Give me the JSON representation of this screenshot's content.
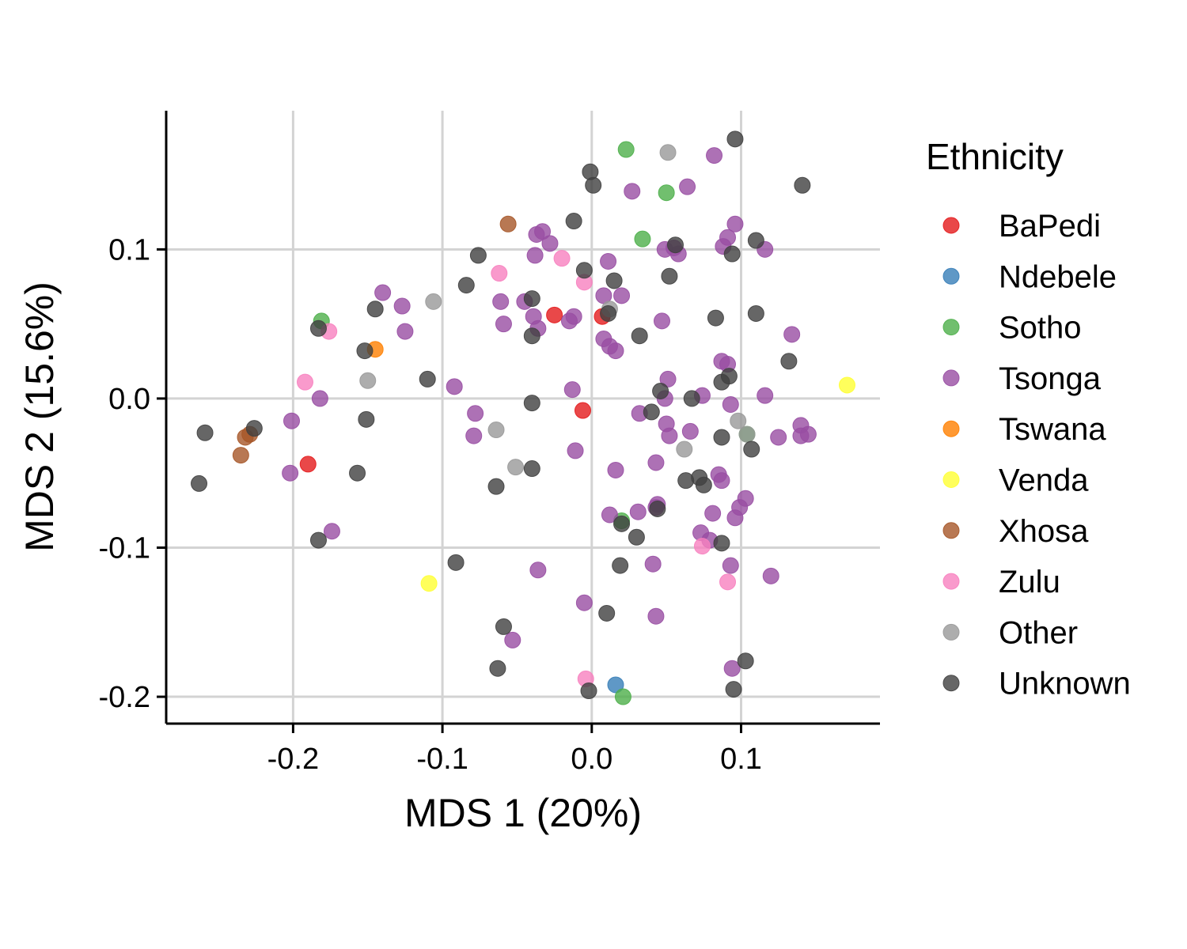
{
  "chart_data": {
    "type": "scatter",
    "xlabel": "MDS 1 (20%)",
    "ylabel": "MDS 2 (15.6%)",
    "xlim": [
      -0.285,
      0.193
    ],
    "ylim": [
      -0.218,
      0.193
    ],
    "x_ticks": [
      -0.2,
      -0.1,
      0.0,
      0.1
    ],
    "x_tick_labels": [
      "-0.2",
      "-0.1",
      "0.0",
      "0.1"
    ],
    "y_ticks": [
      -0.2,
      -0.1,
      0.0,
      0.1
    ],
    "y_tick_labels": [
      "-0.2",
      "-0.1",
      "0.0",
      "0.1"
    ],
    "grid": true,
    "legend": {
      "title": "Ethnicity",
      "position": "right"
    },
    "series": [
      {
        "name": "BaPedi",
        "color": "#e41a1c",
        "points": [
          [
            -0.19,
            -0.044
          ],
          [
            -0.025,
            0.056
          ],
          [
            0.007,
            0.055
          ],
          [
            -0.006,
            -0.008
          ]
        ]
      },
      {
        "name": "Ndebele",
        "color": "#377eb8",
        "points": [
          [
            0.016,
            -0.192
          ]
        ]
      },
      {
        "name": "Sotho",
        "color": "#4daf4a",
        "points": [
          [
            -0.181,
            0.052
          ],
          [
            0.023,
            0.167
          ],
          [
            0.05,
            0.138
          ],
          [
            0.034,
            0.107
          ],
          [
            0.02,
            -0.082
          ],
          [
            0.104,
            -0.024
          ],
          [
            0.021,
            -0.2
          ]
        ]
      },
      {
        "name": "Tsonga",
        "color": "#984ea3",
        "points": [
          [
            -0.14,
            0.071
          ],
          [
            -0.127,
            0.062
          ],
          [
            -0.125,
            0.045
          ],
          [
            -0.182,
            0.0
          ],
          [
            -0.201,
            -0.015
          ],
          [
            -0.202,
            -0.05
          ],
          [
            -0.174,
            -0.089
          ],
          [
            -0.092,
            0.008
          ],
          [
            -0.078,
            -0.01
          ],
          [
            -0.079,
            -0.025
          ],
          [
            -0.061,
            0.065
          ],
          [
            -0.059,
            0.05
          ],
          [
            -0.037,
            0.11
          ],
          [
            -0.033,
            0.112
          ],
          [
            -0.038,
            0.096
          ],
          [
            -0.028,
            0.104
          ],
          [
            -0.039,
            0.055
          ],
          [
            -0.036,
            0.047
          ],
          [
            -0.045,
            0.065
          ],
          [
            -0.015,
            0.052
          ],
          [
            -0.012,
            0.055
          ],
          [
            -0.013,
            0.006
          ],
          [
            -0.011,
            -0.035
          ],
          [
            0.011,
            0.092
          ],
          [
            0.008,
            0.069
          ],
          [
            0.02,
            0.069
          ],
          [
            0.008,
            0.04
          ],
          [
            0.012,
            0.035
          ],
          [
            0.016,
            0.032
          ],
          [
            0.027,
            0.139
          ],
          [
            0.064,
            0.142
          ],
          [
            0.082,
            0.163
          ],
          [
            0.049,
            0.1
          ],
          [
            0.055,
            0.101
          ],
          [
            0.058,
            0.097
          ],
          [
            0.051,
            0.013
          ],
          [
            0.049,
            0.0
          ],
          [
            0.047,
            0.052
          ],
          [
            0.032,
            -0.01
          ],
          [
            0.05,
            -0.017
          ],
          [
            0.052,
            -0.025
          ],
          [
            0.066,
            -0.022
          ],
          [
            0.074,
            0.002
          ],
          [
            0.043,
            -0.043
          ],
          [
            0.016,
            -0.048
          ],
          [
            0.044,
            -0.071
          ],
          [
            0.043,
            -0.073
          ],
          [
            0.031,
            -0.076
          ],
          [
            0.012,
            -0.078
          ],
          [
            0.096,
            0.117
          ],
          [
            0.091,
            0.108
          ],
          [
            0.088,
            0.102
          ],
          [
            0.116,
            0.1
          ],
          [
            0.087,
            0.025
          ],
          [
            0.091,
            0.023
          ],
          [
            0.093,
            -0.004
          ],
          [
            0.116,
            0.002
          ],
          [
            0.134,
            0.043
          ],
          [
            0.125,
            -0.026
          ],
          [
            0.14,
            -0.018
          ],
          [
            0.14,
            -0.025
          ],
          [
            0.145,
            -0.024
          ],
          [
            0.085,
            -0.051
          ],
          [
            0.087,
            -0.055
          ],
          [
            0.103,
            -0.067
          ],
          [
            0.099,
            -0.073
          ],
          [
            0.096,
            -0.08
          ],
          [
            0.081,
            -0.077
          ],
          [
            0.073,
            -0.09
          ],
          [
            0.079,
            -0.095
          ],
          [
            0.093,
            -0.112
          ],
          [
            0.12,
            -0.119
          ],
          [
            0.041,
            -0.111
          ],
          [
            0.043,
            -0.146
          ],
          [
            -0.036,
            -0.115
          ],
          [
            -0.005,
            -0.137
          ],
          [
            -0.053,
            -0.162
          ],
          [
            0.094,
            -0.181
          ]
        ]
      },
      {
        "name": "Tswana",
        "color": "#ff7f00",
        "points": [
          [
            -0.145,
            0.033
          ]
        ]
      },
      {
        "name": "Venda",
        "color": "#ffff33",
        "points": [
          [
            0.171,
            0.009
          ],
          [
            -0.109,
            -0.124
          ]
        ]
      },
      {
        "name": "Xhosa",
        "color": "#a65628",
        "points": [
          [
            -0.056,
            0.117
          ],
          [
            -0.232,
            -0.026
          ],
          [
            -0.235,
            -0.038
          ],
          [
            -0.229,
            -0.024
          ]
        ]
      },
      {
        "name": "Zulu",
        "color": "#f781bf",
        "points": [
          [
            -0.02,
            0.094
          ],
          [
            -0.062,
            0.084
          ],
          [
            -0.005,
            0.078
          ],
          [
            -0.176,
            0.045
          ],
          [
            -0.192,
            0.011
          ],
          [
            0.074,
            -0.099
          ],
          [
            0.091,
            -0.123
          ],
          [
            -0.004,
            -0.188
          ]
        ]
      },
      {
        "name": "Other",
        "color": "#999999",
        "points": [
          [
            0.051,
            0.165
          ],
          [
            -0.106,
            0.065
          ],
          [
            -0.15,
            0.012
          ],
          [
            -0.064,
            -0.021
          ],
          [
            -0.051,
            -0.046
          ],
          [
            0.062,
            -0.034
          ],
          [
            0.098,
            -0.015
          ],
          [
            0.104,
            -0.024
          ],
          [
            0.012,
            0.06
          ]
        ]
      },
      {
        "name": "Unknown",
        "color": "#404040",
        "points": [
          [
            0.096,
            0.174
          ],
          [
            0.141,
            0.143
          ],
          [
            -0.001,
            0.152
          ],
          [
            0.001,
            0.143
          ],
          [
            -0.012,
            0.119
          ],
          [
            -0.076,
            0.096
          ],
          [
            -0.084,
            0.076
          ],
          [
            -0.005,
            0.086
          ],
          [
            0.015,
            0.079
          ],
          [
            0.052,
            0.082
          ],
          [
            0.056,
            0.103
          ],
          [
            0.094,
            0.097
          ],
          [
            0.11,
            0.106
          ],
          [
            0.083,
            0.054
          ],
          [
            0.11,
            0.057
          ],
          [
            -0.04,
            0.067
          ],
          [
            -0.145,
            0.06
          ],
          [
            -0.183,
            0.047
          ],
          [
            -0.152,
            0.032
          ],
          [
            -0.04,
            0.042
          ],
          [
            0.011,
            0.057
          ],
          [
            0.032,
            0.042
          ],
          [
            0.132,
            0.025
          ],
          [
            0.092,
            0.015
          ],
          [
            0.087,
            0.011
          ],
          [
            -0.11,
            0.013
          ],
          [
            0.046,
            0.005
          ],
          [
            0.067,
            0.0
          ],
          [
            -0.151,
            -0.014
          ],
          [
            -0.04,
            -0.003
          ],
          [
            0.04,
            -0.009
          ],
          [
            -0.259,
            -0.023
          ],
          [
            -0.263,
            -0.057
          ],
          [
            -0.226,
            -0.02
          ],
          [
            -0.157,
            -0.05
          ],
          [
            -0.064,
            -0.059
          ],
          [
            -0.04,
            -0.047
          ],
          [
            0.087,
            -0.026
          ],
          [
            0.107,
            -0.034
          ],
          [
            0.063,
            -0.055
          ],
          [
            0.072,
            -0.053
          ],
          [
            0.075,
            -0.058
          ],
          [
            0.02,
            -0.084
          ],
          [
            0.044,
            -0.074
          ],
          [
            0.03,
            -0.093
          ],
          [
            0.087,
            -0.097
          ],
          [
            -0.183,
            -0.095
          ],
          [
            -0.091,
            -0.11
          ],
          [
            0.019,
            -0.112
          ],
          [
            0.01,
            -0.144
          ],
          [
            -0.059,
            -0.153
          ],
          [
            -0.063,
            -0.181
          ],
          [
            -0.002,
            -0.196
          ],
          [
            0.095,
            -0.195
          ],
          [
            0.103,
            -0.176
          ]
        ]
      }
    ]
  }
}
